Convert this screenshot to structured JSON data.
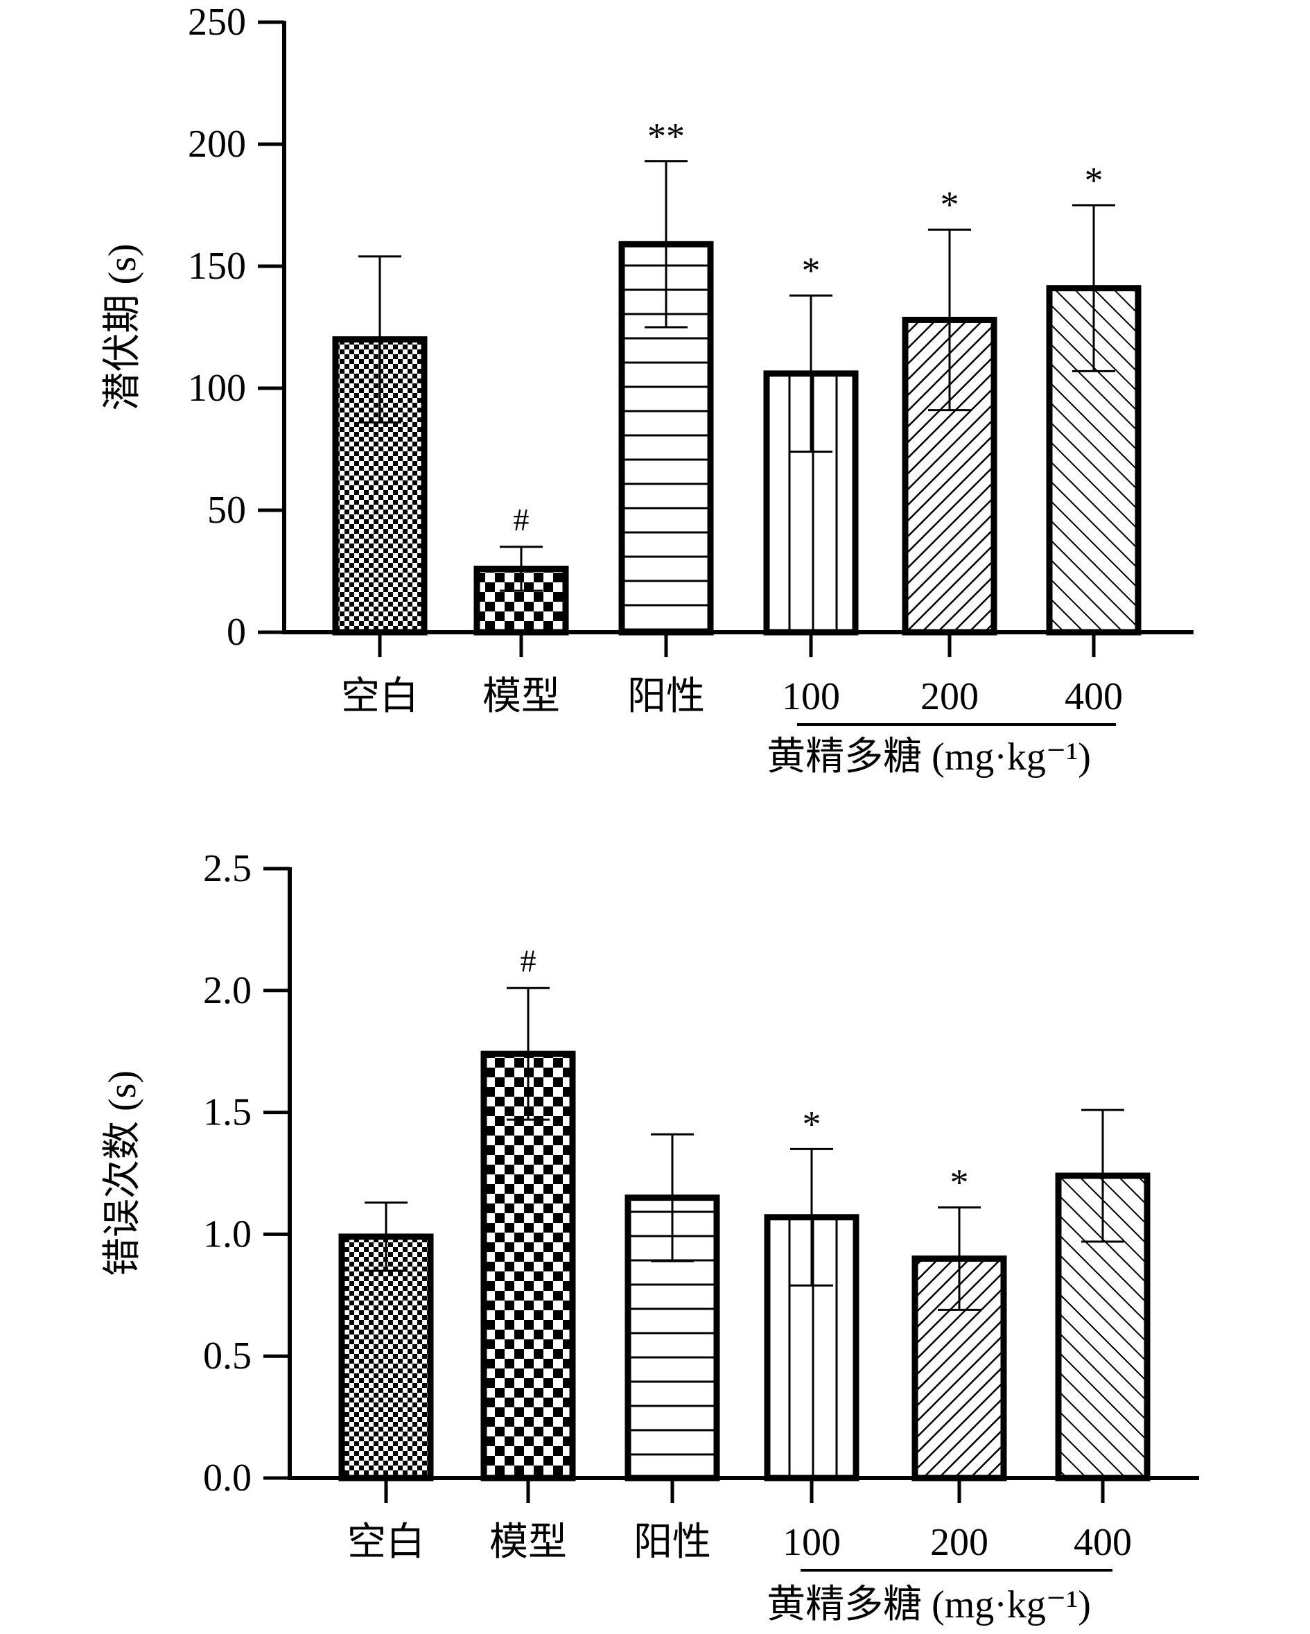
{
  "colors": {
    "ink": "#000000",
    "background": "#ffffff"
  },
  "x_group_label": "黄精多糖 (mg·kg⁻¹)",
  "chart_data": [
    {
      "type": "bar",
      "ylabel": "潜伏期 (s)",
      "xlabel": "黄精多糖 (mg·kg⁻¹)",
      "ylim": [
        0,
        250
      ],
      "yticks": [
        0,
        50,
        100,
        150,
        200,
        250
      ],
      "ytick_labels": [
        "0",
        "50",
        "100",
        "150",
        "200",
        "250"
      ],
      "categories": [
        "空白",
        "模型",
        "阳性",
        "100",
        "200",
        "400"
      ],
      "values": [
        120,
        26,
        159,
        106,
        128,
        141
      ],
      "errors": [
        34,
        9,
        34,
        32,
        37,
        34
      ],
      "annotations": [
        "",
        "#",
        "**",
        "*",
        "*",
        "*"
      ],
      "patterns": [
        "checker-fine",
        "checker-coarse",
        "horizontal",
        "vertical",
        "diagonal",
        "diagonal-sparse"
      ]
    },
    {
      "type": "bar",
      "ylabel": "错误次数 (s)",
      "xlabel": "黄精多糖 (mg·kg⁻¹)",
      "ylim": [
        0,
        2.5
      ],
      "yticks": [
        0,
        0.5,
        1.0,
        1.5,
        2.0,
        2.5
      ],
      "ytick_labels": [
        "0.0",
        "0.5",
        "1.0",
        "1.5",
        "2.0",
        "2.5"
      ],
      "categories": [
        "空白",
        "模型",
        "阳性",
        "100",
        "200",
        "400"
      ],
      "values": [
        0.99,
        1.74,
        1.15,
        1.07,
        0.9,
        1.24
      ],
      "errors": [
        0.14,
        0.27,
        0.26,
        0.28,
        0.21,
        0.27
      ],
      "annotations": [
        "",
        "#",
        "",
        "*",
        "*",
        ""
      ],
      "patterns": [
        "checker-fine",
        "checker-coarse",
        "horizontal",
        "vertical",
        "diagonal",
        "diagonal-sparse"
      ]
    }
  ]
}
